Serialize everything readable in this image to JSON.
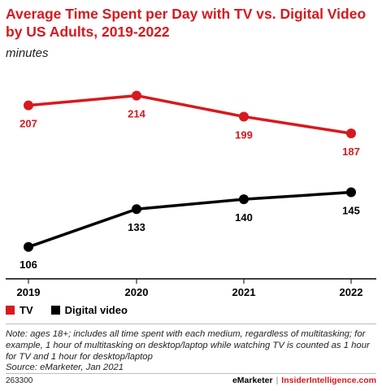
{
  "header": {
    "title": "Average Time Spent per Day with TV vs. Digital Video by US Adults, 2019-2022",
    "subtitle": "minutes"
  },
  "chart_data": {
    "type": "line",
    "title": "Average Time Spent per Day with TV vs. Digital Video by US Adults, 2019-2022",
    "subtitle": "minutes",
    "categories": [
      "2019",
      "2020",
      "2021",
      "2022"
    ],
    "series": [
      {
        "name": "TV",
        "color": "#d7191f",
        "values": [
          207,
          214,
          199,
          187
        ]
      },
      {
        "name": "Digital video",
        "color": "#000000",
        "values": [
          106,
          133,
          140,
          145
        ]
      }
    ],
    "ylim": [
      85,
      230
    ],
    "grid": false,
    "legend_position": "bottom-left"
  },
  "note": {
    "text": "Note: ages 18+; includes all time spent with each medium, regardless of multitasking; for example, 1 hour of multitasking on desktop/laptop while watching TV is counted as 1 hour for TV and 1 hour for desktop/laptop",
    "source": "Source: eMarketer, Jan 2021"
  },
  "footer": {
    "chart_id": "263300",
    "brand": "eMarketer",
    "separator": "|",
    "site": "InsiderIntelligence.com"
  }
}
